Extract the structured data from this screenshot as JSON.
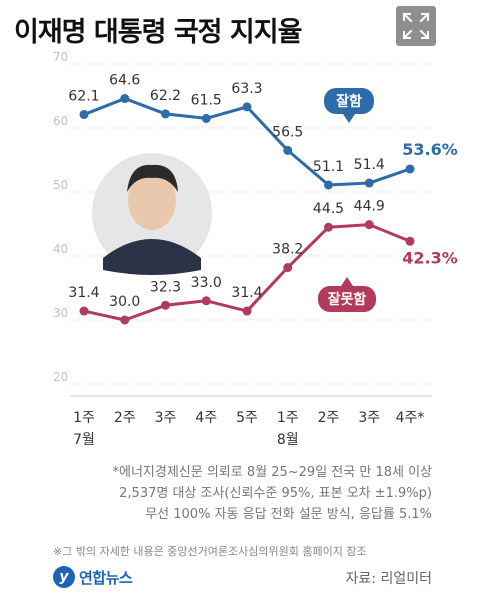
{
  "header": {
    "title": "이재명 대통령 국정 지지율"
  },
  "icons": {
    "expand": "expand-icon"
  },
  "colors": {
    "approve": "#2d6ca8",
    "disapprove": "#b23a5b",
    "grid": "#d6d6d6",
    "axis_text": "#c2c2c2",
    "expand_bg": "#8f8f8f"
  },
  "chart_data": {
    "type": "line",
    "categories": [
      {
        "line1": "1주",
        "line2": "7월"
      },
      {
        "line1": "2주",
        "line2": ""
      },
      {
        "line1": "3주",
        "line2": ""
      },
      {
        "line1": "4주",
        "line2": ""
      },
      {
        "line1": "5주",
        "line2": ""
      },
      {
        "line1": "1주",
        "line2": "8월"
      },
      {
        "line1": "2주",
        "line2": ""
      },
      {
        "line1": "3주",
        "line2": ""
      },
      {
        "line1": "4주*",
        "line2": ""
      }
    ],
    "yticks": [
      "70",
      "60",
      "50",
      "40",
      "30",
      "20"
    ],
    "ylim": [
      20,
      70
    ],
    "grid": true,
    "series": [
      {
        "name": "잘함",
        "values": [
          62.1,
          64.6,
          62.2,
          61.5,
          63.3,
          56.5,
          51.1,
          51.4,
          53.6
        ],
        "labels": [
          "62.1",
          "64.6",
          "62.2",
          "61.5",
          "63.3",
          "56.5",
          "51.1",
          "51.4",
          "53.6%"
        ]
      },
      {
        "name": "잘못함",
        "values": [
          31.4,
          30.0,
          32.3,
          33.0,
          31.4,
          38.2,
          44.5,
          44.9,
          42.3
        ],
        "labels": [
          "31.4",
          "30.0",
          "32.3",
          "33.0",
          "31.4",
          "38.2",
          "44.5",
          "44.9",
          "42.3%"
        ]
      }
    ]
  },
  "notes": {
    "line1": "*에너지경제신문 의뢰로 8월 25~29일 전국 만 18세 이상",
    "line2": "2,537명 대상 조사(신뢰수준 95%, 표본 오차 ±1.9%p)",
    "line3": "무선 100% 자동 응답 전화 설문 방식, 응답률 5.1%"
  },
  "footnote": "※그 밖의 자세한 내용은 중앙선거여론조사심의위원회 홈페이지 참조",
  "brand": {
    "logo_mark": "y",
    "name": "연합뉴스"
  },
  "source": "자료: 리얼미터"
}
